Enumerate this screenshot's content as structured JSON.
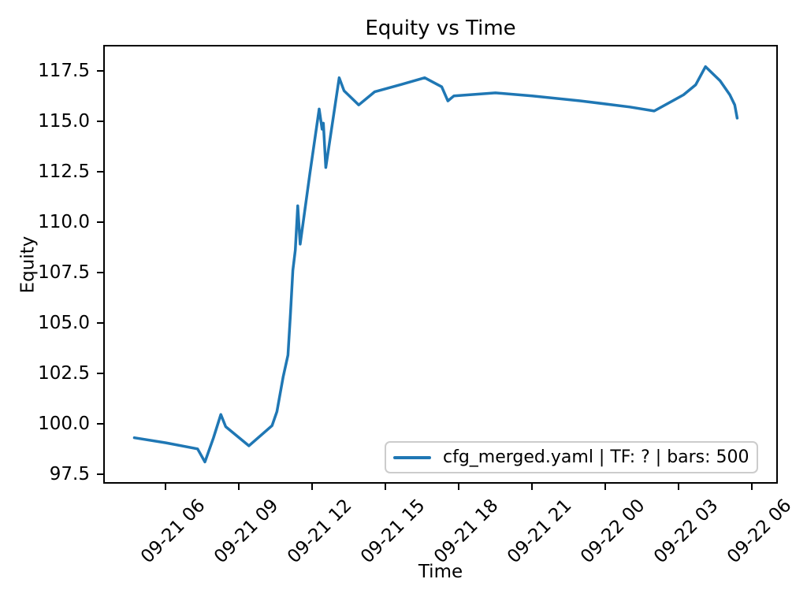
{
  "chart_data": {
    "type": "line",
    "title": "Equity vs Time",
    "xlabel": "Time",
    "ylabel": "Equity",
    "grid": false,
    "line_color": "#1f77b4",
    "axis_color": "#000000",
    "legend": {
      "position": "lower right",
      "entries": [
        "cfg_merged.yaml | TF: ? | bars: 500"
      ]
    },
    "x_axis": {
      "units": "hours since 09-21 00:00",
      "range_hours": [
        3.5,
        31.0
      ],
      "tick_hours": [
        6,
        9,
        12,
        15,
        18,
        21,
        24,
        27,
        30
      ],
      "tick_labels": [
        "09-21 06",
        "09-21 09",
        "09-21 12",
        "09-21 15",
        "09-21 18",
        "09-21 21",
        "09-22 00",
        "09-22 03",
        "09-22 06"
      ],
      "tick_rotation_deg": 45
    },
    "y_axis": {
      "range": [
        97.1,
        118.7
      ],
      "tick_values": [
        97.5,
        100.0,
        102.5,
        105.0,
        107.5,
        110.0,
        112.5,
        115.0,
        117.5
      ],
      "tick_labels": [
        "97.5",
        "100.0",
        "102.5",
        "105.0",
        "107.5",
        "110.0",
        "112.5",
        "115.0",
        "117.5"
      ]
    },
    "series": [
      {
        "name": "cfg_merged.yaml | TF: ? | bars: 500",
        "color": "#1f77b4",
        "x_hours": [
          4.71,
          6.0,
          7.3,
          7.6,
          7.95,
          8.25,
          8.45,
          9.4,
          10.35,
          10.55,
          10.8,
          11.0,
          11.1,
          11.2,
          11.3,
          11.4,
          11.5,
          11.9,
          12.28,
          12.4,
          12.45,
          12.55,
          13.1,
          13.3,
          13.9,
          14.55,
          15.6,
          16.6,
          17.3,
          17.55,
          17.8,
          19.5,
          21.0,
          23.0,
          25.0,
          26.0,
          27.2,
          27.7,
          28.1,
          28.7,
          29.1,
          29.3,
          29.4
        ],
        "x_time": [
          "09-21 04:43",
          "09-21 06:00",
          "09-21 07:18",
          "09-21 07:36",
          "09-21 07:57",
          "09-21 08:15",
          "09-21 08:27",
          "09-21 09:24",
          "09-21 10:21",
          "09-21 10:33",
          "09-21 10:48",
          "09-21 11:00",
          "09-21 11:06",
          "09-21 11:12",
          "09-21 11:18",
          "09-21 11:24",
          "09-21 11:30",
          "09-21 11:54",
          "09-21 12:17",
          "09-21 12:24",
          "09-21 12:27",
          "09-21 12:33",
          "09-21 13:06",
          "09-21 13:18",
          "09-21 13:54",
          "09-21 14:33",
          "09-21 15:36",
          "09-21 16:36",
          "09-21 17:18",
          "09-21 17:33",
          "09-21 17:48",
          "09-21 19:30",
          "09-21 21:00",
          "09-21 23:00",
          "09-22 01:00",
          "09-22 02:00",
          "09-22 03:12",
          "09-22 03:42",
          "09-22 04:06",
          "09-22 04:42",
          "09-22 05:06",
          "09-22 05:18",
          "09-22 05:24"
        ],
        "values": [
          99.3,
          99.05,
          98.75,
          98.1,
          99.3,
          100.45,
          99.85,
          98.9,
          99.9,
          100.6,
          102.3,
          103.4,
          105.4,
          107.6,
          108.6,
          110.8,
          108.9,
          112.4,
          115.6,
          114.6,
          114.9,
          112.7,
          117.15,
          116.5,
          115.8,
          116.45,
          116.8,
          117.15,
          116.7,
          116.0,
          116.25,
          116.4,
          116.25,
          116.0,
          115.7,
          115.5,
          116.3,
          116.8,
          117.7,
          117.0,
          116.3,
          115.8,
          115.15
        ]
      }
    ]
  }
}
